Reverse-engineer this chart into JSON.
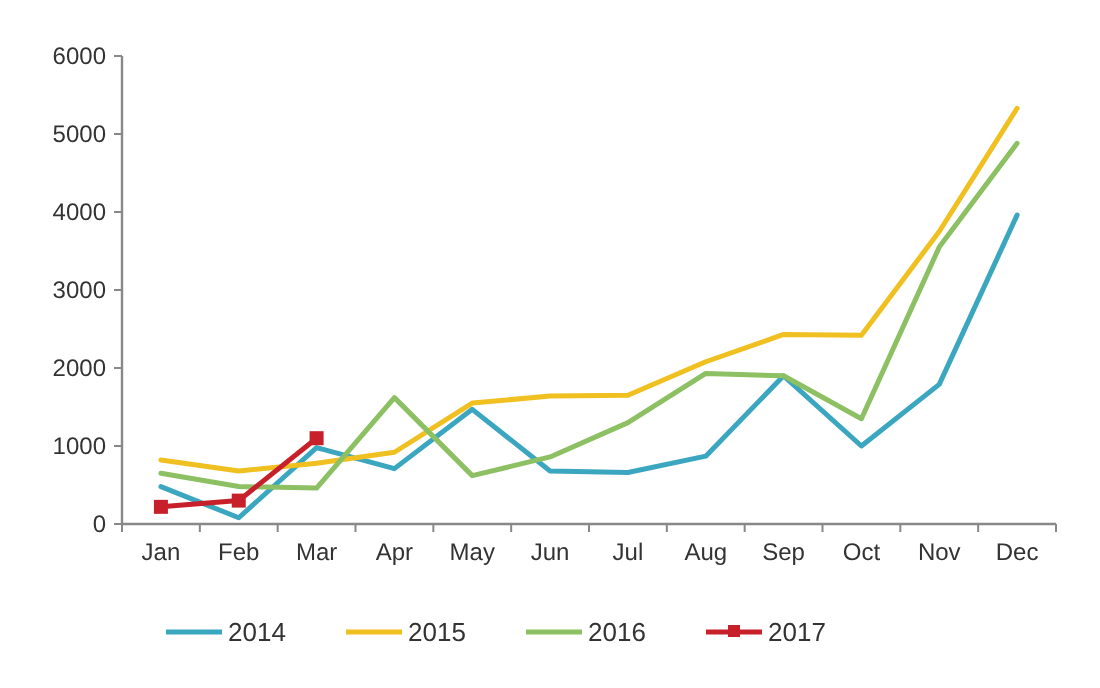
{
  "chart_data": {
    "type": "line",
    "categories": [
      "Jan",
      "Feb",
      "Mar",
      "Apr",
      "May",
      "Jun",
      "Jul",
      "Aug",
      "Sep",
      "Oct",
      "Nov",
      "Dec"
    ],
    "series": [
      {
        "name": "2014",
        "color": "#3aa6c0",
        "marker": "none",
        "values": [
          480,
          80,
          980,
          710,
          1470,
          680,
          660,
          870,
          1900,
          1000,
          1790,
          3960
        ]
      },
      {
        "name": "2015",
        "color": "#f0c020",
        "marker": "none",
        "values": [
          820,
          680,
          780,
          920,
          1550,
          1640,
          1650,
          2080,
          2430,
          2420,
          3750,
          5330
        ]
      },
      {
        "name": "2016",
        "color": "#8cc063",
        "marker": "none",
        "values": [
          650,
          480,
          460,
          1620,
          620,
          860,
          1300,
          1930,
          1900,
          1350,
          3550,
          4880
        ]
      },
      {
        "name": "2017",
        "color": "#c8202a",
        "marker": "square",
        "values": [
          220,
          300,
          1100,
          null,
          null,
          null,
          null,
          null,
          null,
          null,
          null,
          null
        ]
      }
    ],
    "ylim": [
      0,
      6000
    ],
    "yticks": [
      0,
      1000,
      2000,
      3000,
      4000,
      5000,
      6000
    ],
    "grid": false,
    "legend": "bottom"
  }
}
